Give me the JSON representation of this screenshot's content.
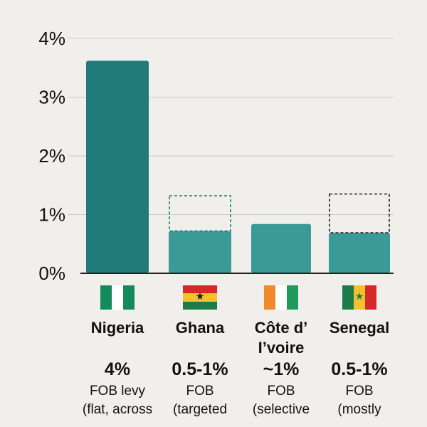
{
  "chart_data": {
    "type": "bar",
    "categories": [
      "Nigeria",
      "Ghana",
      "Côte d’ Ivoire",
      "Senegal"
    ],
    "category_lines": [
      [
        "Nigeria"
      ],
      [
        "Ghana"
      ],
      [
        "Côte d’",
        "I’voire"
      ],
      [
        "Senegal"
      ]
    ],
    "values": [
      3.62,
      0.72,
      0.84,
      0.69
    ],
    "range_max": [
      null,
      1.32,
      null,
      1.35
    ],
    "yticks": [
      "0%",
      "1%",
      "2%",
      "3%",
      "4%"
    ],
    "ylim": [
      0,
      4
    ],
    "grid": true,
    "colors": {
      "primary_bar": "#1f7a78",
      "secondary_bar": "#3a9a96",
      "range_outline_ghana": "#1f7a78",
      "range_outline_senegal": "#222222",
      "grid": "#c9c9c9",
      "axis": "#222222"
    },
    "rates": [
      "4%",
      "0.5-1%",
      "~1%",
      "0.5-1%"
    ],
    "basis": [
      "FOB levy",
      "FOB",
      "FOB",
      "FOB"
    ],
    "notes": [
      "(flat, across",
      "(targeted",
      "(selective",
      "(mostly"
    ],
    "flags": [
      "nigeria-flag-icon",
      "ghana-flag-icon",
      "cote-divoire-flag-icon",
      "senegal-flag-icon"
    ]
  }
}
